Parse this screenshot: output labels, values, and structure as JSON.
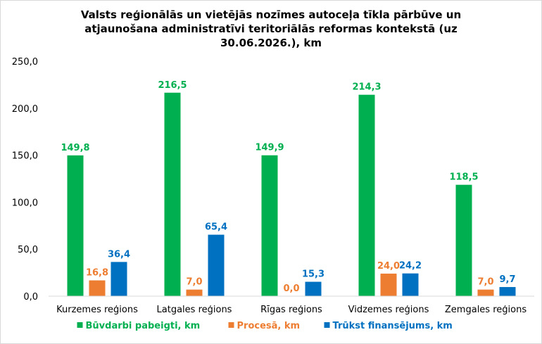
{
  "chart_data": {
    "type": "bar",
    "title_lines": [
      "Valsts reģionālās un vietējās nozīmes autoceļa tīkla pārbūve un",
      "atjaunošana administratīvi teritoriālās reformas kontekstā (uz",
      "30.06.2026.), km"
    ],
    "categories": [
      "Kurzemes reģions",
      "Latgales reģions",
      "Rīgas reģions",
      "Vidzemes reģions",
      "Zemgales reģions"
    ],
    "series": [
      {
        "name": "Būvdarbi pabeigti, km",
        "color": "#00b050",
        "values": [
          149.8,
          216.5,
          149.9,
          214.3,
          118.5
        ],
        "labels": [
          "149,8",
          "216,5",
          "149,9",
          "214,3",
          "118,5"
        ]
      },
      {
        "name": "Procesā, km",
        "color": "#ed7d31",
        "values": [
          16.8,
          7.0,
          0.0,
          24.0,
          7.0
        ],
        "labels": [
          "16,8",
          "7,0",
          "0,0",
          "24,0",
          "7,0"
        ]
      },
      {
        "name": "Trūkst finansējums, km",
        "color": "#0070c0",
        "values": [
          36.4,
          65.4,
          15.3,
          24.2,
          9.7
        ],
        "labels": [
          "36,4",
          "65,4",
          "15,3",
          "24,2",
          "9,7"
        ]
      }
    ],
    "y_ticks": [
      "0,0",
      "50,0",
      "100,0",
      "150,0",
      "200,0",
      "250,0"
    ],
    "ylim": [
      0,
      250
    ],
    "grid": false,
    "legend_position": "bottom"
  }
}
